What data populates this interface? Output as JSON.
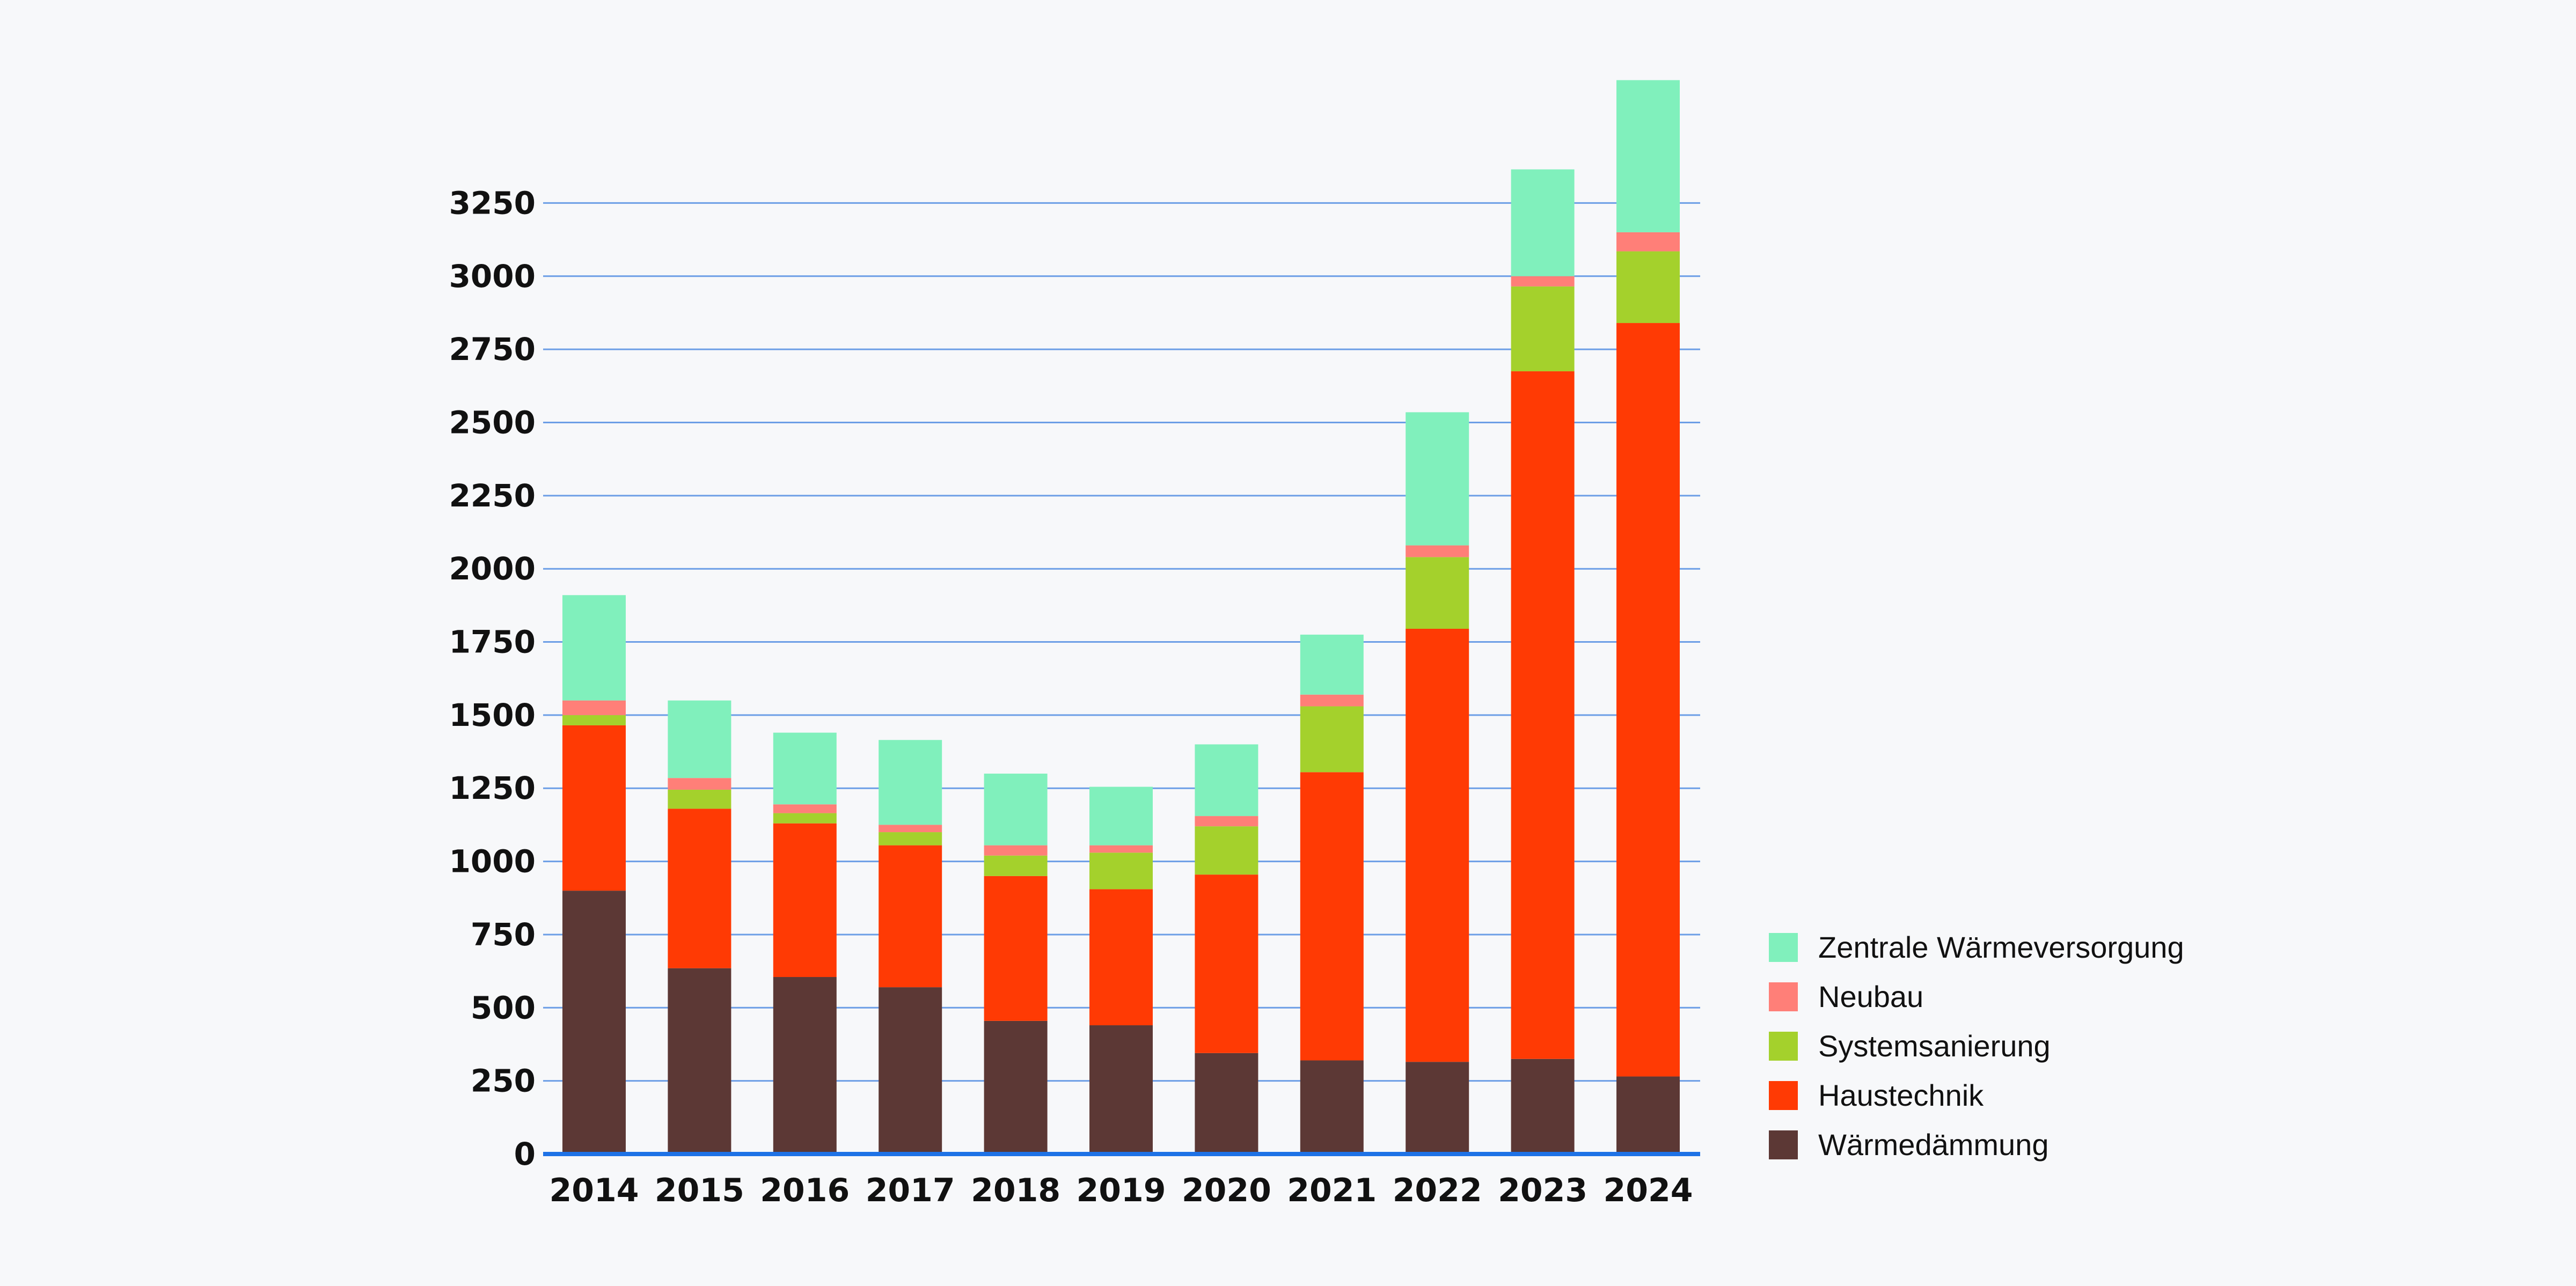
{
  "chart_data": {
    "type": "bar",
    "stacked": true,
    "categories": [
      "2014",
      "2015",
      "2016",
      "2017",
      "2018",
      "2019",
      "2020",
      "2021",
      "2022",
      "2023",
      "2024"
    ],
    "series": [
      {
        "name": "Wärmedämmung",
        "color": "#5c3835",
        "values": [
          900,
          635,
          605,
          570,
          455,
          440,
          345,
          320,
          315,
          325,
          265
        ]
      },
      {
        "name": "Haustechnik",
        "color": "#ff3a04",
        "values": [
          565,
          545,
          525,
          485,
          495,
          465,
          610,
          985,
          1480,
          2350,
          2575
        ]
      },
      {
        "name": "Systemsanierung",
        "color": "#a4d12c",
        "values": [
          35,
          65,
          35,
          45,
          70,
          125,
          165,
          225,
          245,
          290,
          245
        ]
      },
      {
        "name": "Neubau",
        "color": "#ff7f78",
        "values": [
          50,
          40,
          30,
          25,
          35,
          25,
          35,
          40,
          40,
          35,
          65
        ]
      },
      {
        "name": "Zentrale Wärmeversorgung",
        "color": "#80f0bc",
        "values": [
          360,
          265,
          245,
          290,
          245,
          200,
          245,
          205,
          455,
          365,
          520
        ]
      }
    ],
    "yticks": [
      0,
      250,
      500,
      750,
      1000,
      1250,
      1500,
      1750,
      2000,
      2250,
      2500,
      2750,
      3000,
      3250
    ],
    "ylim": [
      0,
      3700
    ],
    "title": "",
    "xlabel": "",
    "ylabel": "",
    "grid": true,
    "legend": "bottom-right",
    "gridColor": "#6c9ee6",
    "axisColor": "#1e72e6"
  }
}
